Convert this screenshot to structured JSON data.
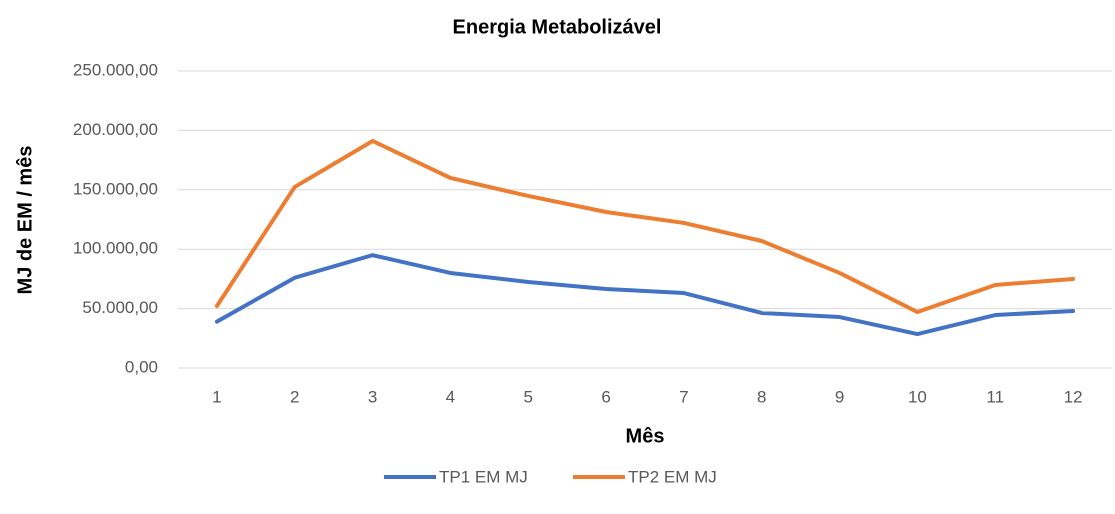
{
  "chart_data": {
    "type": "line",
    "title": "Energia Metabolizável",
    "x_label": "Mês",
    "y_label": "MJ de EM / mês",
    "categories": [
      "1",
      "2",
      "3",
      "4",
      "5",
      "6",
      "7",
      "8",
      "9",
      "10",
      "11",
      "12"
    ],
    "series": [
      {
        "name": "TP1 EM MJ",
        "color": "#4472c4",
        "values": [
          39000,
          76000,
          95000,
          80000,
          72400,
          66500,
          63100,
          46300,
          42900,
          28600,
          44600,
          48000
        ]
      },
      {
        "name": "TP2 EM MJ",
        "color": "#ed7d31",
        "values": [
          52200,
          152400,
          191100,
          160000,
          144800,
          131300,
          122100,
          106900,
          80000,
          47100,
          69900,
          74900
        ]
      }
    ],
    "ylim": [
      0,
      250000
    ],
    "yticks": [
      {
        "value": 0,
        "label": "0,00"
      },
      {
        "value": 50000,
        "label": "50.000,00"
      },
      {
        "value": 100000,
        "label": "100.000,00"
      },
      {
        "value": 150000,
        "label": "150.000,00"
      },
      {
        "value": 200000,
        "label": "200.000,00"
      },
      {
        "value": 250000,
        "label": "250.000,00"
      }
    ],
    "grid": true,
    "legend": "bottom"
  }
}
